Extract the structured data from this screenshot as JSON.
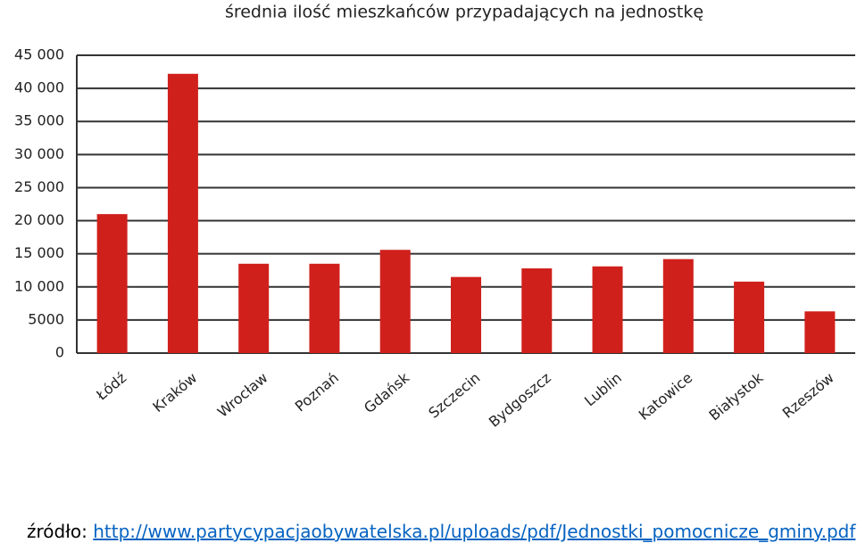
{
  "chart_data": {
    "type": "bar",
    "title": "średnia ilość mieszkańców przypadających na jednostkę",
    "categories": [
      "Łódź",
      "Kraków",
      "Wrocław",
      "Poznań",
      "Gdańsk",
      "Szczecin",
      "Bydgoszcz",
      "Lublin",
      "Katowice",
      "Białystok",
      "Rzeszów"
    ],
    "values": [
      21000,
      42200,
      13500,
      13500,
      15600,
      11500,
      12800,
      13100,
      14200,
      10800,
      6300
    ],
    "color": "#d0201c",
    "ylim": [
      0,
      45000
    ],
    "yticks": [
      0,
      5000,
      {
        "value": 10000,
        "label": "10 000"
      },
      {
        "value": 15000,
        "label": "15 000"
      },
      {
        "value": 20000,
        "label": "20 000"
      },
      {
        "value": 25000,
        "label": "25 000"
      },
      {
        "value": 30000,
        "label": "30 000"
      },
      {
        "value": 35000,
        "label": "35 000"
      },
      {
        "value": 40000,
        "label": "40 000"
      },
      {
        "value": 45000,
        "label": "45 000"
      }
    ],
    "grid": true
  },
  "source": {
    "label": "źródło:",
    "url": "http://www.partycypacjaobywatelska.pl/uploads/pdf/Jednostki_pomocnicze_gminy.pdf"
  }
}
